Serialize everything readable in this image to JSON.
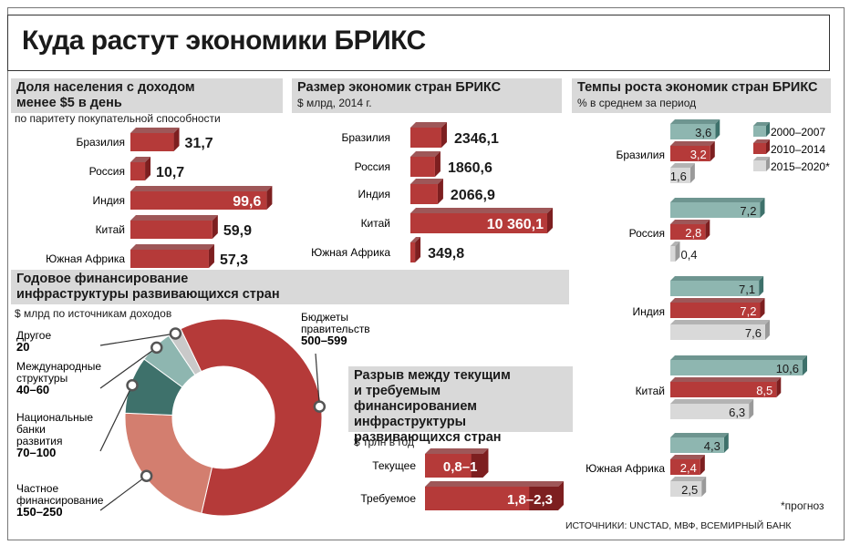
{
  "title": "Куда растут экономики БРИКС",
  "colors": {
    "red": "#b53a39",
    "red_dark": "#7d1f20",
    "teal": "#8eb6b0",
    "teal_dark": "#3e716b",
    "grey": "#d9d9d9",
    "grey_dark": "#9a9a9a",
    "pie_light": "#d37e6f",
    "pie_grey": "#c9c9c9"
  },
  "chart_data": [
    {
      "type": "bar",
      "title_line1": "Доля населения с доходом",
      "title_line2": "менее $5 в день",
      "subtitle": "по паритету покупательной способности",
      "categories": [
        "Бразилия",
        "Россия",
        "Индия",
        "Китай",
        "Южная Африка"
      ],
      "values": [
        31.7,
        10.7,
        99.6,
        59.9,
        57.3
      ],
      "labels": [
        "31,7",
        "10,7",
        "99,6",
        "59,9",
        "57,3"
      ],
      "xlim": [
        0,
        100
      ]
    },
    {
      "type": "bar",
      "title": "Размер экономик стран БРИКС",
      "subtitle": "$ млрд, 2014 г.",
      "categories": [
        "Бразилия",
        "Россия",
        "Индия",
        "Китай",
        "Южная Африка"
      ],
      "values": [
        2346.1,
        1860.6,
        2066.9,
        10360.1,
        349.8
      ],
      "labels": [
        "2346,1",
        "1860,6",
        "2066,9",
        "10 360,1",
        "349,8"
      ],
      "xlim": [
        0,
        10360.1
      ]
    },
    {
      "type": "bar",
      "title": "Темпы роста экономик стран БРИКС",
      "subtitle": "% в среднем за период",
      "categories": [
        "Бразилия",
        "Россия",
        "Индия",
        "Китай",
        "Южная Африка"
      ],
      "series": [
        {
          "name": "2000–2007",
          "values": [
            3.6,
            7.2,
            7.1,
            10.6,
            4.3
          ],
          "labels": [
            "3,6",
            "7,2",
            "7,1",
            "10,6",
            "4,3"
          ]
        },
        {
          "name": "2010–2014",
          "values": [
            3.2,
            2.8,
            7.2,
            8.5,
            2.4
          ],
          "labels": [
            "3,2",
            "2,8",
            "7,2",
            "8,5",
            "2,4"
          ]
        },
        {
          "name": "2015–2020*",
          "values": [
            1.6,
            0.4,
            7.6,
            6.3,
            2.5
          ],
          "labels": [
            "1,6",
            "0,4",
            "7,6",
            "6,3",
            "2,5"
          ]
        }
      ],
      "xlim": [
        0,
        10.6
      ],
      "legend": "top-right",
      "note": "*прогноз"
    },
    {
      "type": "pie",
      "title_line1": "Годовое финансирование",
      "title_line2": "инфраструктуры развивающихся стран",
      "subtitle": "$ млрд по источникам доходов",
      "slices": [
        {
          "name_lines": [
            "Бюджеты",
            "правительств"
          ],
          "label": "500–599",
          "value": 549.5
        },
        {
          "name_lines": [
            "Частное",
            "финансирование"
          ],
          "label": "150–250",
          "value": 200
        },
        {
          "name_lines": [
            "Национальные",
            "банки",
            "развития"
          ],
          "label": "70–100",
          "value": 85
        },
        {
          "name_lines": [
            "Международные",
            "структуры"
          ],
          "label": "40–60",
          "value": 50
        },
        {
          "name_lines": [
            "Другое"
          ],
          "label": "20",
          "value": 20
        }
      ]
    },
    {
      "type": "bar",
      "title_lines": [
        "Разрыв между текущим",
        "и требуемым финансированием",
        "инфраструктуры",
        "развивающихся стран"
      ],
      "subtitle": "$ трлн в год",
      "categories": [
        "Текущее",
        "Требуемое"
      ],
      "ranges": [
        [
          0.8,
          1.0
        ],
        [
          1.8,
          2.3
        ]
      ],
      "labels": [
        "0,8–1",
        "1,8–2,3"
      ],
      "xlim": [
        0,
        2.3
      ]
    }
  ],
  "sources": "ИСТОЧНИКИ: UNCTAD, МВФ, ВСЕМИРНЫЙ БАНК"
}
